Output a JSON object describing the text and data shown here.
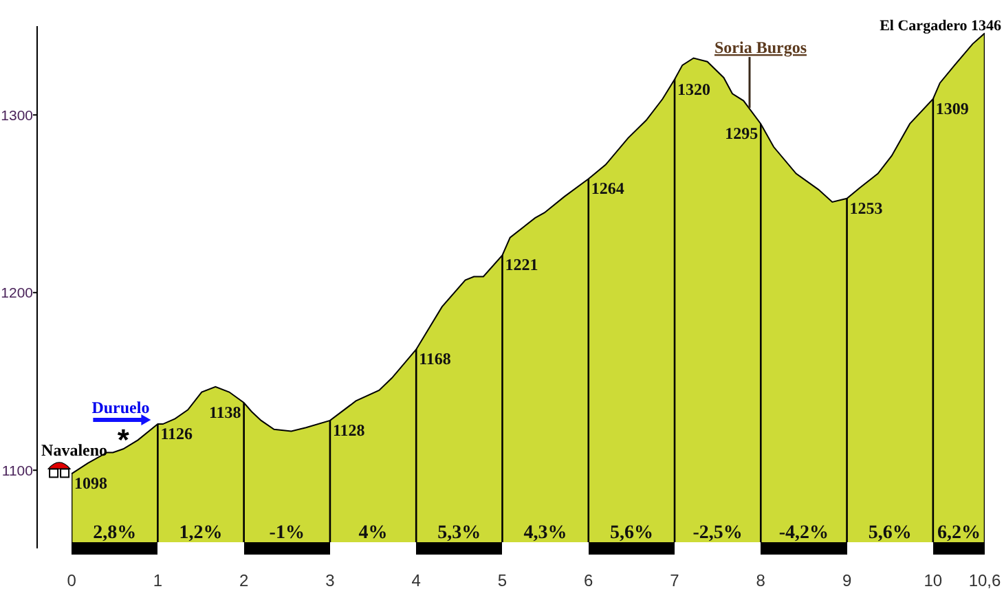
{
  "chart_data": {
    "type": "area",
    "x": [
      0,
      0.19,
      0.41,
      0.48,
      0.6,
      0.77,
      1,
      1.06,
      1.2,
      1.35,
      1.51,
      1.67,
      1.83,
      2,
      2.09,
      2.2,
      2.35,
      2.55,
      2.72,
      3,
      3.3,
      3.57,
      3.72,
      4,
      4.3,
      4.57,
      4.67,
      4.78,
      5,
      5.09,
      5.38,
      5.49,
      5.72,
      6,
      6.2,
      6.46,
      6.67,
      6.86,
      7,
      7.09,
      7.22,
      7.38,
      7.57,
      7.67,
      7.8,
      8,
      8.15,
      8.41,
      8.67,
      8.83,
      9,
      9.15,
      9.36,
      9.52,
      9.73,
      10,
      10.08,
      10.25,
      10.46,
      10.6
    ],
    "values": [
      1098,
      1104,
      1110,
      1110,
      1112,
      1117,
      1126,
      1126,
      1129,
      1134,
      1144,
      1147,
      1144,
      1138,
      1133,
      1128,
      1123,
      1122,
      1124,
      1128,
      1139,
      1145,
      1152,
      1168,
      1192,
      1207,
      1209,
      1209,
      1221,
      1231,
      1242,
      1245,
      1254,
      1264,
      1272,
      1287,
      1297,
      1309,
      1320,
      1328,
      1332,
      1330,
      1321,
      1312,
      1308,
      1295,
      1282,
      1267,
      1258,
      1251,
      1253,
      1259,
      1267,
      1277,
      1295,
      1309,
      1318,
      1328,
      1340,
      1346
    ],
    "value_labels": [
      "1098",
      null,
      null,
      null,
      null,
      null,
      "1126",
      null,
      null,
      null,
      null,
      null,
      null,
      "1138",
      null,
      null,
      null,
      null,
      null,
      "1128",
      null,
      null,
      null,
      "1168",
      null,
      null,
      null,
      null,
      "1221",
      null,
      null,
      null,
      null,
      "1264",
      null,
      null,
      null,
      null,
      "1320",
      null,
      null,
      null,
      null,
      null,
      null,
      "1295",
      null,
      null,
      null,
      null,
      "1253",
      null,
      null,
      null,
      null,
      "1309",
      null,
      null,
      null,
      null
    ],
    "color": "#cddb37",
    "xlim": [
      -0.4,
      10.6
    ],
    "xticks": [
      0,
      1,
      2,
      3,
      4,
      5,
      6,
      7,
      8,
      9,
      10,
      {
        "value": 10.6,
        "label": "10,6"
      }
    ],
    "ylim": [
      1056,
      1350
    ],
    "yticks": [
      1100,
      1200,
      1300
    ],
    "grid": "x",
    "annotations": [
      {
        "text": "Navaleno",
        "x": 0,
        "y": 1098
      },
      {
        "text": "Duruelo",
        "x": 1,
        "y": 1126
      },
      {
        "text": "*",
        "x": 0.6,
        "y": 1112
      },
      {
        "text": "Soria Burgos",
        "x": 7.87,
        "y": 1304
      },
      {
        "text": "El Cargadero 1346",
        "x": 10.6,
        "y": 1346
      },
      "2,8%",
      "1,2%",
      "-1%",
      "4%",
      "5,3%",
      "4,3%",
      "5,6%",
      "-2,5%",
      "-4,2%",
      "5,6%",
      "6,2%"
    ]
  }
}
